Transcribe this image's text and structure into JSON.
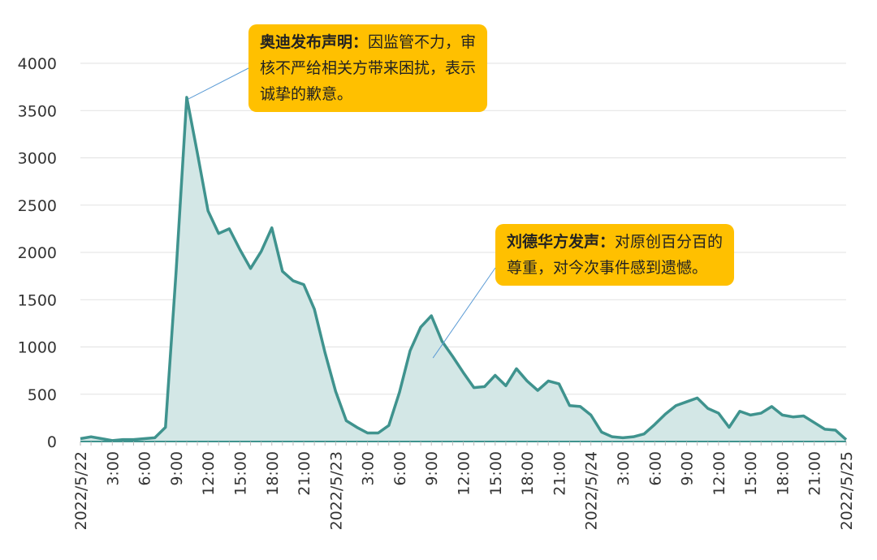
{
  "chart_data": {
    "type": "area",
    "ylim": [
      0,
      4000
    ],
    "yticks": [
      0,
      500,
      1000,
      1500,
      2000,
      2500,
      3000,
      3500,
      4000
    ],
    "grid": true,
    "colors": {
      "line": "#3f938e",
      "fill": "#d3e7e6",
      "grid": "#e2e2e2",
      "annotation_bg": "#ffc000"
    },
    "xtick_labels": [
      {
        "h": 0,
        "label": "2022/5/22"
      },
      {
        "h": 3,
        "label": "3:00"
      },
      {
        "h": 6,
        "label": "6:00"
      },
      {
        "h": 9,
        "label": "9:00"
      },
      {
        "h": 12,
        "label": "12:00"
      },
      {
        "h": 15,
        "label": "15:00"
      },
      {
        "h": 18,
        "label": "18:00"
      },
      {
        "h": 21,
        "label": "21:00"
      },
      {
        "h": 24,
        "label": "2022/5/23"
      },
      {
        "h": 27,
        "label": "3:00"
      },
      {
        "h": 30,
        "label": "6:00"
      },
      {
        "h": 33,
        "label": "9:00"
      },
      {
        "h": 36,
        "label": "12:00"
      },
      {
        "h": 39,
        "label": "15:00"
      },
      {
        "h": 42,
        "label": "18:00"
      },
      {
        "h": 45,
        "label": "21:00"
      },
      {
        "h": 48,
        "label": "2022/5/24"
      },
      {
        "h": 51,
        "label": "3:00"
      },
      {
        "h": 54,
        "label": "6:00"
      },
      {
        "h": 57,
        "label": "9:00"
      },
      {
        "h": 60,
        "label": "12:00"
      },
      {
        "h": 63,
        "label": "15:00"
      },
      {
        "h": 66,
        "label": "18:00"
      },
      {
        "h": 69,
        "label": "21:00"
      },
      {
        "h": 72,
        "label": "2022/5/25"
      }
    ],
    "values": [
      30,
      50,
      30,
      10,
      20,
      20,
      30,
      40,
      150,
      1800,
      3640,
      3050,
      2440,
      2200,
      2250,
      2030,
      1830,
      2010,
      2260,
      1800,
      1700,
      1660,
      1400,
      940,
      530,
      220,
      150,
      90,
      90,
      170,
      520,
      960,
      1210,
      1330,
      1060,
      900,
      730,
      570,
      580,
      700,
      590,
      770,
      640,
      540,
      640,
      610,
      380,
      370,
      280,
      100,
      50,
      40,
      50,
      80,
      180,
      290,
      380,
      420,
      460,
      350,
      300,
      150,
      320,
      280,
      300,
      370,
      280,
      260,
      270,
      200,
      130,
      120,
      20
    ],
    "annotations": [
      {
        "title": "奥迪发布声明：",
        "text": "因监管不力，审核不严给相关方带来困扰，表示诚挚的歉意。",
        "point_h": 10
      },
      {
        "title": "刘德华方发声：",
        "text": "对原创百分百的尊重，对今次事件感到遗憾。",
        "point_h": 33
      }
    ]
  }
}
